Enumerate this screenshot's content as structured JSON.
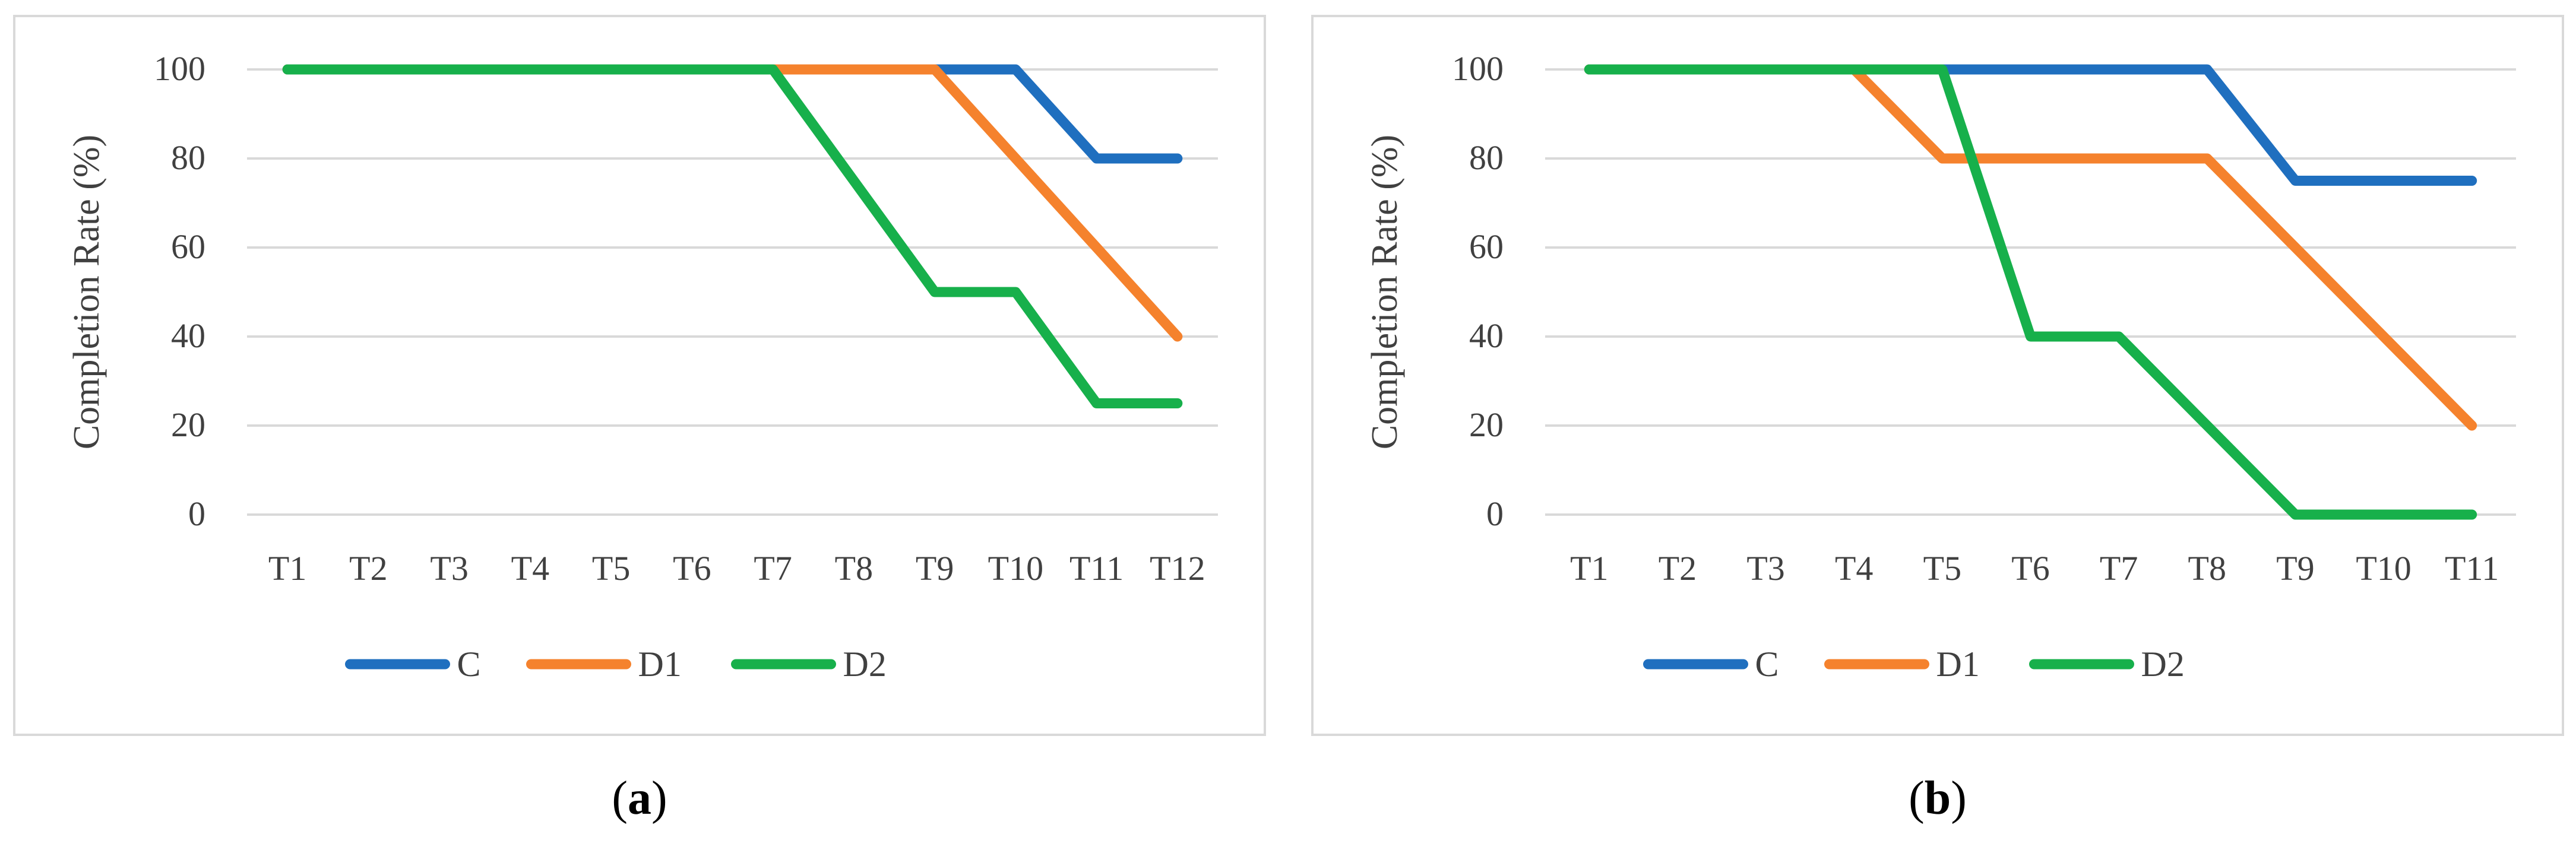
{
  "captions": [
    {
      "open": "(",
      "letter": "a",
      "close": ")"
    },
    {
      "open": "(",
      "letter": "b",
      "close": ")"
    }
  ],
  "chart_data": [
    {
      "type": "line",
      "title": "",
      "ylabel": "Completion Rate (%)",
      "xlabel": "",
      "ylim": [
        0,
        100
      ],
      "yticks": [
        0,
        20,
        40,
        60,
        80,
        100
      ],
      "grid": true,
      "legend_position": "bottom",
      "categories": [
        "T1",
        "T2",
        "T3",
        "T4",
        "T5",
        "T6",
        "T7",
        "T8",
        "T9",
        "T10",
        "T11",
        "T12"
      ],
      "series": [
        {
          "name": "C",
          "color": "#1f6fbf",
          "values": [
            100,
            100,
            100,
            100,
            100,
            100,
            100,
            100,
            100,
            100,
            80,
            80
          ]
        },
        {
          "name": "D1",
          "color": "#f5822d",
          "values": [
            100,
            100,
            100,
            100,
            100,
            100,
            100,
            100,
            100,
            80,
            60,
            40
          ]
        },
        {
          "name": "D2",
          "color": "#17b04b",
          "values": [
            100,
            100,
            100,
            100,
            100,
            100,
            100,
            75,
            50,
            50,
            25,
            25
          ]
        }
      ]
    },
    {
      "type": "line",
      "title": "",
      "ylabel": "Completion Rate (%)",
      "xlabel": "",
      "ylim": [
        0,
        100
      ],
      "yticks": [
        0,
        20,
        40,
        60,
        80,
        100
      ],
      "grid": true,
      "legend_position": "bottom",
      "categories": [
        "T1",
        "T2",
        "T3",
        "T4",
        "T5",
        "T6",
        "T7",
        "T8",
        "T9",
        "T10",
        "T11"
      ],
      "series": [
        {
          "name": "C",
          "color": "#1f6fbf",
          "values": [
            100,
            100,
            100,
            100,
            100,
            100,
            100,
            100,
            75,
            75,
            75
          ]
        },
        {
          "name": "D1",
          "color": "#f5822d",
          "values": [
            100,
            100,
            100,
            100,
            80,
            80,
            80,
            80,
            60,
            40,
            20
          ]
        },
        {
          "name": "D2",
          "color": "#17b04b",
          "values": [
            100,
            100,
            100,
            100,
            100,
            40,
            40,
            20,
            0,
            0,
            0
          ]
        }
      ]
    }
  ]
}
